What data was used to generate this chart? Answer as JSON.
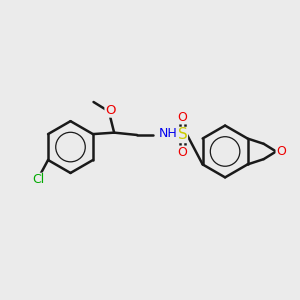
{
  "bg_color": "#ebebeb",
  "bond_color": "#1a1a1a",
  "bond_width": 1.8,
  "atom_colors": {
    "O": "#ee0000",
    "N": "#0000ee",
    "S": "#cccc00",
    "Cl": "#00aa00",
    "H": "#7a7a7a",
    "C": "#1a1a1a"
  },
  "font_size": 8.5,
  "figsize": [
    3.0,
    3.0
  ],
  "dpi": 100
}
